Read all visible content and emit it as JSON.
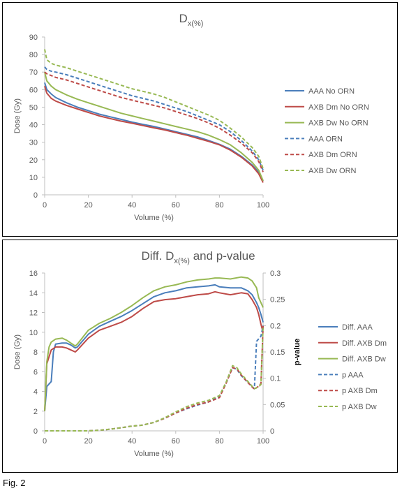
{
  "figure_label": "Fig. 2",
  "colors": {
    "aaa": "#4a7ebb",
    "axb_dm": "#be4b48",
    "axb_dw": "#98b954",
    "axis": "#bfbfbf",
    "text": "#595959"
  },
  "chart_data": [
    {
      "type": "line",
      "title_main": "D",
      "title_sub": "x(%)",
      "xlabel": "Volume (%)",
      "ylabel": "Dose (Gy)",
      "xlim": [
        0,
        100
      ],
      "ylim": [
        0,
        90
      ],
      "xticks": [
        0,
        20,
        40,
        60,
        80,
        100
      ],
      "yticks": [
        0,
        10,
        20,
        30,
        40,
        50,
        60,
        70,
        80,
        90
      ],
      "grid": false,
      "legend_position": "right",
      "series": [
        {
          "name": "AAA No ORN",
          "color": "#4a7ebb",
          "dashed": false,
          "x": [
            0,
            1,
            3,
            5,
            10,
            15,
            20,
            25,
            30,
            35,
            40,
            45,
            50,
            55,
            60,
            65,
            70,
            75,
            80,
            85,
            90,
            95,
            98,
            100
          ],
          "y": [
            64,
            60,
            57.5,
            55.5,
            52.5,
            50,
            48,
            46,
            44.5,
            43,
            41.5,
            40.2,
            39,
            37.5,
            36,
            34.5,
            33,
            31,
            28.8,
            26,
            22,
            17,
            13,
            8
          ]
        },
        {
          "name": "AXB Dm No ORN",
          "color": "#be4b48",
          "dashed": false,
          "x": [
            0,
            1,
            3,
            5,
            10,
            15,
            20,
            25,
            30,
            35,
            40,
            45,
            50,
            55,
            60,
            65,
            70,
            75,
            80,
            85,
            90,
            95,
            98,
            100
          ],
          "y": [
            62,
            58,
            55,
            53.5,
            51,
            49,
            47,
            45,
            43.5,
            42,
            40.8,
            39.5,
            38.2,
            37,
            35.5,
            34,
            32.2,
            30.5,
            28.5,
            25.5,
            21.5,
            16.5,
            12,
            7
          ]
        },
        {
          "name": "AXB Dw No ORN",
          "color": "#98b954",
          "dashed": false,
          "x": [
            0,
            1,
            3,
            5,
            10,
            15,
            20,
            25,
            30,
            35,
            40,
            45,
            50,
            55,
            60,
            65,
            70,
            75,
            80,
            85,
            90,
            95,
            98,
            100
          ],
          "y": [
            70,
            65,
            62,
            60,
            57,
            54.5,
            52.5,
            50.5,
            48.5,
            46.5,
            45,
            43.5,
            42,
            40.5,
            39,
            37.5,
            36,
            34,
            31.5,
            28.5,
            24,
            18.5,
            14,
            8
          ]
        },
        {
          "name": "AAA ORN",
          "color": "#4a7ebb",
          "dashed": true,
          "x": [
            0,
            1,
            3,
            5,
            10,
            15,
            20,
            25,
            30,
            35,
            40,
            45,
            50,
            55,
            60,
            65,
            70,
            75,
            80,
            85,
            90,
            95,
            98,
            100
          ],
          "y": [
            73,
            71.5,
            70.5,
            70,
            68.5,
            66.5,
            64.5,
            62.5,
            60.5,
            58.5,
            56.5,
            55,
            53.5,
            51.5,
            49.5,
            47.5,
            45,
            42.5,
            40,
            36,
            31,
            25,
            20,
            14
          ]
        },
        {
          "name": "AXB Dm ORN",
          "color": "#be4b48",
          "dashed": true,
          "x": [
            0,
            1,
            3,
            5,
            10,
            15,
            20,
            25,
            30,
            35,
            40,
            45,
            50,
            55,
            60,
            65,
            70,
            75,
            80,
            85,
            90,
            95,
            98,
            100
          ],
          "y": [
            70,
            69,
            68,
            67,
            65.5,
            63.5,
            61.5,
            59.5,
            57.5,
            55.5,
            54,
            52.5,
            51,
            49.5,
            47.5,
            45.5,
            43.5,
            41,
            38,
            34,
            29.5,
            24,
            19,
            13
          ]
        },
        {
          "name": "AXB Dw ORN",
          "color": "#98b954",
          "dashed": true,
          "x": [
            0,
            1,
            3,
            5,
            10,
            15,
            20,
            25,
            30,
            35,
            40,
            45,
            50,
            55,
            60,
            65,
            70,
            75,
            80,
            85,
            90,
            95,
            98,
            100
          ],
          "y": [
            83,
            77,
            75,
            74,
            72.5,
            70.5,
            68.5,
            66.5,
            64.5,
            62.5,
            60.5,
            59,
            57.5,
            55.5,
            53,
            50.5,
            48,
            45.5,
            42.5,
            38,
            33,
            27,
            22,
            15
          ]
        }
      ]
    },
    {
      "type": "line",
      "title_pre": "Diff. D",
      "title_sub": "x(%)",
      "title_post": " and p-value",
      "xlabel": "Volume (%)",
      "ylabel": "Dose (Gy)",
      "y2label": "p-value",
      "xlim": [
        0,
        100
      ],
      "ylim": [
        0,
        16
      ],
      "y2lim": [
        0,
        0.3
      ],
      "xticks": [
        0,
        20,
        40,
        60,
        80,
        100
      ],
      "yticks": [
        0,
        2,
        4,
        6,
        8,
        10,
        12,
        14,
        16
      ],
      "y2ticks": [
        0,
        0.05,
        0.1,
        0.15,
        0.2,
        0.25,
        0.3
      ],
      "grid": false,
      "legend_position": "right",
      "series": [
        {
          "name": "Diff. AAA",
          "color": "#4a7ebb",
          "dashed": false,
          "axis": "left",
          "x": [
            0,
            1,
            3,
            4,
            5,
            8,
            10,
            12,
            14,
            15,
            20,
            25,
            30,
            35,
            40,
            45,
            50,
            55,
            60,
            65,
            70,
            75,
            78,
            80,
            85,
            90,
            93,
            95,
            97,
            98,
            99,
            100
          ],
          "y": [
            2,
            4.5,
            5,
            8,
            8.8,
            8.9,
            8.9,
            8.7,
            8.4,
            8.5,
            9.8,
            10.6,
            11.1,
            11.6,
            12.2,
            12.9,
            13.6,
            14,
            14.2,
            14.5,
            14.6,
            14.7,
            14.8,
            14.6,
            14.5,
            14.5,
            14.2,
            13.8,
            13,
            12.5,
            11.8,
            11
          ]
        },
        {
          "name": "Diff. AXB Dm",
          "color": "#be4b48",
          "dashed": false,
          "axis": "left",
          "x": [
            0,
            1,
            3,
            5,
            8,
            10,
            12,
            14,
            15,
            20,
            25,
            30,
            35,
            40,
            45,
            50,
            55,
            60,
            65,
            70,
            75,
            78,
            80,
            85,
            90,
            93,
            95,
            97,
            98,
            99,
            100
          ],
          "y": [
            2,
            6.8,
            8.2,
            8.5,
            8.5,
            8.4,
            8.2,
            8,
            8.2,
            9.4,
            10.2,
            10.6,
            11,
            11.6,
            12.4,
            13.1,
            13.3,
            13.4,
            13.6,
            13.8,
            13.9,
            14.1,
            14,
            13.8,
            14,
            13.9,
            13.3,
            12.5,
            11.8,
            10.8,
            10
          ]
        },
        {
          "name": "Diff. AXB Dw",
          "color": "#98b954",
          "dashed": false,
          "axis": "left",
          "x": [
            0,
            1,
            2,
            3,
            5,
            8,
            10,
            12,
            14,
            15,
            20,
            25,
            30,
            35,
            40,
            45,
            50,
            55,
            60,
            65,
            70,
            75,
            78,
            80,
            85,
            90,
            93,
            95,
            97,
            98,
            100
          ],
          "y": [
            2,
            7,
            8.5,
            9,
            9.3,
            9.4,
            9.2,
            8.9,
            8.6,
            8.8,
            10.2,
            10.9,
            11.4,
            12,
            12.7,
            13.5,
            14.2,
            14.6,
            14.8,
            15.1,
            15.3,
            15.4,
            15.5,
            15.5,
            15.4,
            15.6,
            15.5,
            15.2,
            14.5,
            13.5,
            12.5
          ]
        },
        {
          "name": "p AAA",
          "color": "#4a7ebb",
          "dashed": true,
          "axis": "right",
          "x": [
            0,
            20,
            25,
            30,
            35,
            40,
            45,
            50,
            55,
            60,
            65,
            70,
            75,
            80,
            83,
            86,
            88,
            90,
            93,
            96,
            97,
            98,
            99,
            100
          ],
          "y": [
            0,
            0,
            0.001,
            0.003,
            0.006,
            0.009,
            0.011,
            0.016,
            0.024,
            0.034,
            0.042,
            0.049,
            0.055,
            0.065,
            0.09,
            0.12,
            0.117,
            0.105,
            0.092,
            0.08,
            0.17,
            0.175,
            0.18,
            0.2
          ]
        },
        {
          "name": "p AXB Dm",
          "color": "#be4b48",
          "dashed": true,
          "axis": "right",
          "x": [
            0,
            20,
            25,
            30,
            35,
            40,
            45,
            50,
            55,
            60,
            65,
            70,
            75,
            80,
            83,
            86,
            88,
            90,
            93,
            96,
            97,
            98,
            99,
            100
          ],
          "y": [
            0,
            0,
            0.001,
            0.003,
            0.006,
            0.009,
            0.011,
            0.016,
            0.024,
            0.034,
            0.043,
            0.05,
            0.055,
            0.063,
            0.09,
            0.12,
            0.118,
            0.106,
            0.092,
            0.079,
            0.082,
            0.085,
            0.09,
            0.2
          ]
        },
        {
          "name": "p AXB Dw",
          "color": "#98b954",
          "dashed": true,
          "axis": "right",
          "x": [
            0,
            20,
            25,
            30,
            35,
            40,
            45,
            50,
            55,
            60,
            65,
            70,
            75,
            80,
            83,
            86,
            88,
            90,
            93,
            96,
            97,
            98,
            99,
            100
          ],
          "y": [
            0,
            0,
            0.001,
            0.003,
            0.006,
            0.009,
            0.011,
            0.016,
            0.025,
            0.036,
            0.046,
            0.053,
            0.058,
            0.067,
            0.092,
            0.124,
            0.12,
            0.108,
            0.094,
            0.08,
            0.082,
            0.084,
            0.088,
            0.2
          ]
        }
      ]
    }
  ]
}
